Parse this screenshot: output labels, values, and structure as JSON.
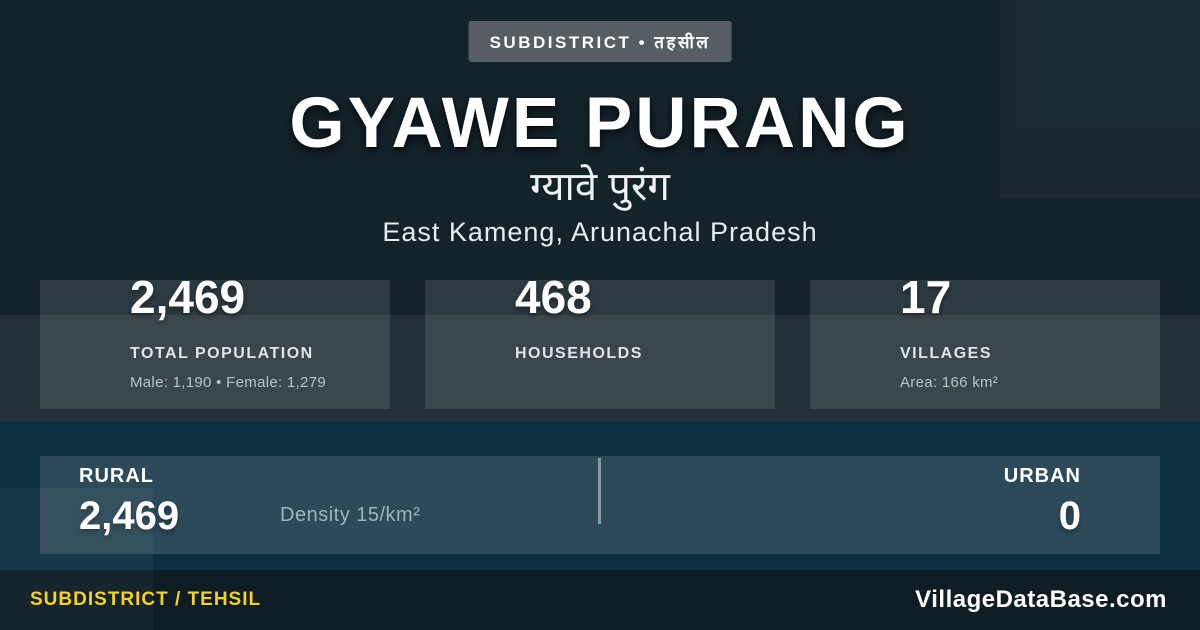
{
  "badge": {
    "label": "SUBDISTRICT • तहसील"
  },
  "header": {
    "title": "GYAWE PURANG",
    "title_hindi": "ग्यावे पुरंग",
    "location": "East Kameng, Arunachal Pradesh"
  },
  "stats": {
    "cards": [
      {
        "value": "2,469",
        "label": "TOTAL POPULATION",
        "sublabel": "Male: 1,190 • Female: 1,279"
      },
      {
        "value": "468",
        "label": "HOUSEHOLDS",
        "sublabel": ""
      },
      {
        "value": "17",
        "label": "VILLAGES",
        "sublabel": "Area: 166 km²"
      }
    ]
  },
  "rural_urban": {
    "rural_label": "RURAL",
    "rural_value": "2,469",
    "density": "Density 15/km²",
    "urban_label": "URBAN",
    "urban_value": "0"
  },
  "footer": {
    "type_label": "SUBDISTRICT / TEHSIL",
    "brand": "VillageDataBase.com"
  },
  "colors": {
    "background": "#14222a",
    "section_blue": "#0c2f40",
    "footer_bg": "#0e1c24",
    "badge_bg": "#565e64",
    "accent_yellow": "#f7d21e",
    "text_primary": "#ffffff",
    "text_muted": "#b7c3c9"
  }
}
